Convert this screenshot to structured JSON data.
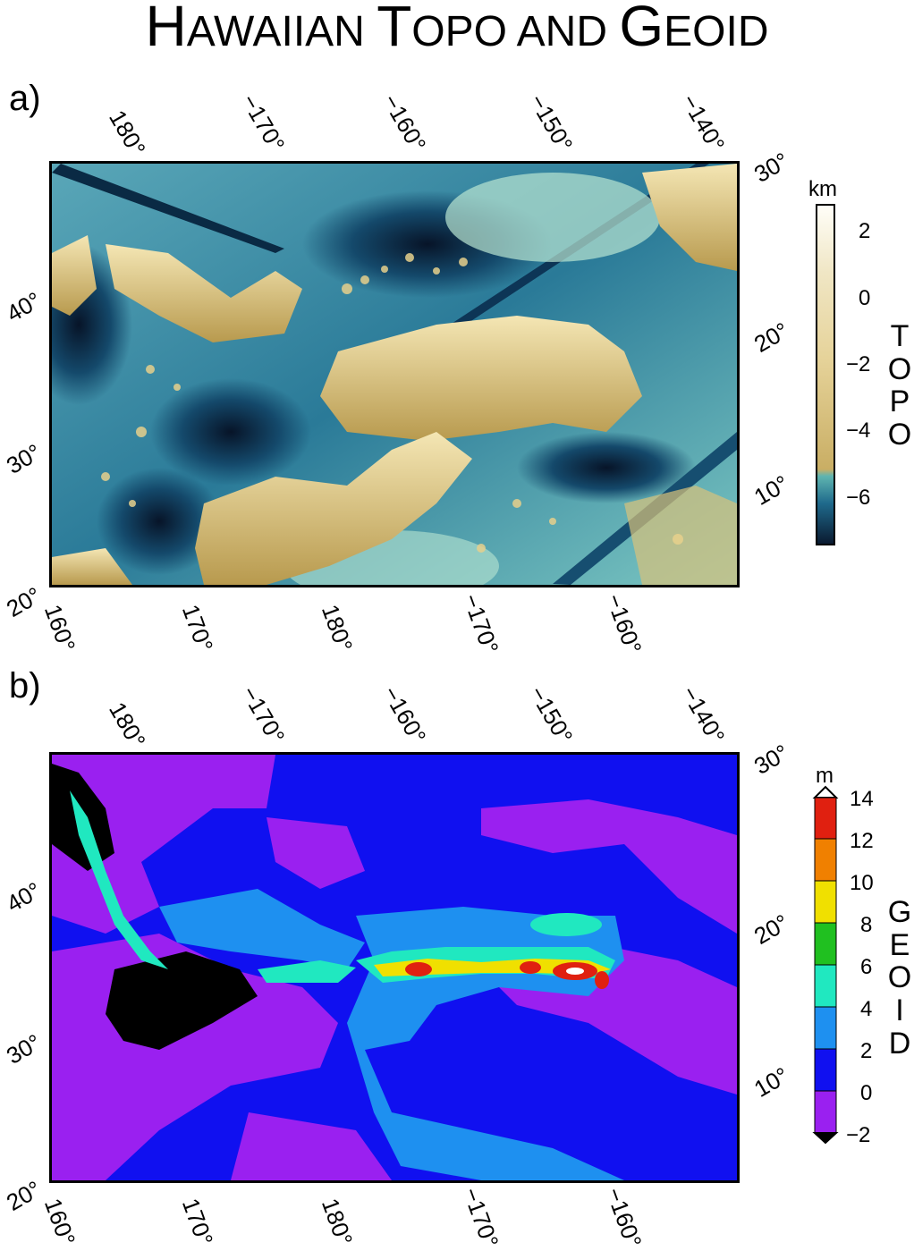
{
  "title": {
    "main_h": "H",
    "main_rest1": "AWAIIAN ",
    "main_t": "T",
    "main_rest2": "OPO AND ",
    "main_g": "G",
    "main_rest3": "EOID"
  },
  "panels": [
    {
      "label": "a)",
      "top_ticks": [
        "180°",
        "−170°",
        "−160°",
        "−150°",
        "−140°"
      ],
      "bottom_ticks": [
        "160°",
        "170°",
        "180°",
        "−170°",
        "−160°"
      ],
      "left_ticks": [
        "40°",
        "30°",
        "20°"
      ],
      "right_ticks": [
        "30°",
        "20°",
        "10°"
      ],
      "colorbar": {
        "unit": "km",
        "labels": [
          "2",
          "0",
          "−2",
          "−4",
          "−6"
        ],
        "vertical_title": [
          "T",
          "O",
          "P",
          "O"
        ]
      }
    },
    {
      "label": "b)",
      "top_ticks": [
        "180°",
        "−170°",
        "−160°",
        "−150°",
        "−140°"
      ],
      "bottom_ticks": [
        "160°",
        "170°",
        "180°",
        "−170°",
        "−160°"
      ],
      "left_ticks": [
        "40°",
        "30°",
        "20°"
      ],
      "right_ticks": [
        "30°",
        "20°",
        "10°"
      ],
      "colorbar": {
        "unit": "m",
        "labels": [
          "14",
          "12",
          "10",
          "8",
          "6",
          "4",
          "2",
          "0",
          "−2"
        ],
        "vertical_title": [
          "G",
          "E",
          "O",
          "I",
          "D"
        ]
      }
    }
  ],
  "colors": {
    "topo_deep": "#0b1a33",
    "topo_mid": "#1c6e8e",
    "topo_shallow": "#b9e6d2",
    "topo_shelf": "#d8c27a",
    "topo_high": "#fff8e8",
    "geoid": [
      "#9a20f0",
      "#1010f0",
      "#1e90f0",
      "#20e8c0",
      "#20c020",
      "#f0e000",
      "#f08000",
      "#e02010"
    ]
  }
}
